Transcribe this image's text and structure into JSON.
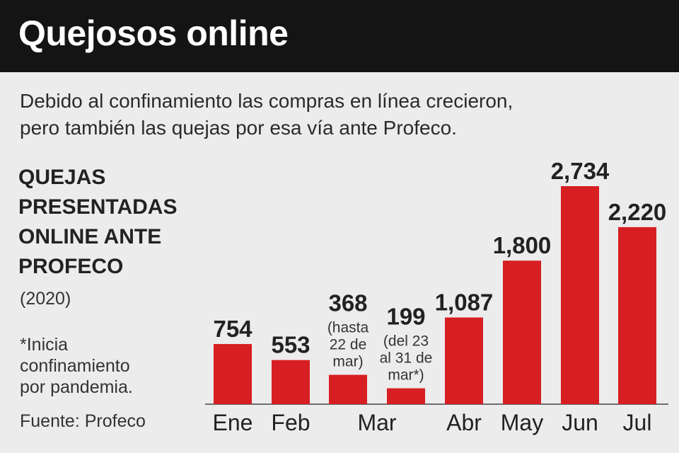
{
  "header": {
    "title": "Quejosos online"
  },
  "subtitle": {
    "line1": "Debido al confinamiento las compras en línea crecieron,",
    "line2": "pero también las quejas por esa vía ante Profeco."
  },
  "side": {
    "heading_lines": [
      "QUEJAS",
      "PRESENTADAS",
      "ONLINE ANTE",
      "PROFECO"
    ],
    "year": "(2020)",
    "note_lines": [
      "*Inicia",
      "confinamiento",
      "por pandemia."
    ],
    "source": "Fuente: Profeco"
  },
  "colors": {
    "bar": "#d71e22",
    "header_bg": "#141414",
    "background": "#ececec"
  },
  "chart_data": {
    "type": "bar",
    "title": "QUEJAS PRESENTADAS ONLINE ANTE PROFECO",
    "subtitle": "(2020)",
    "bars": [
      {
        "category": "Ene",
        "value": 754,
        "label": "754"
      },
      {
        "category": "Feb",
        "value": 553,
        "label": "553"
      },
      {
        "category": "Mar",
        "value": 368,
        "label": "368",
        "note": [
          "(hasta",
          "22 de",
          "mar)"
        ]
      },
      {
        "category": "Mar",
        "value": 199,
        "label": "199",
        "note": [
          "(del 23",
          "al 31 de",
          "mar*)"
        ]
      },
      {
        "category": "Abr",
        "value": 1087,
        "label": "1,087"
      },
      {
        "category": "May",
        "value": 1800,
        "label": "1,800"
      },
      {
        "category": "Jun",
        "value": 2734,
        "label": "2,734"
      },
      {
        "category": "Jul",
        "value": 2220,
        "label": "2,220"
      }
    ],
    "category_labels": [
      "Ene",
      "Feb",
      "Mar",
      "Abr",
      "May",
      "Jun",
      "Jul"
    ],
    "ylim": [
      0,
      2734
    ],
    "grid": false,
    "legend": "none"
  }
}
